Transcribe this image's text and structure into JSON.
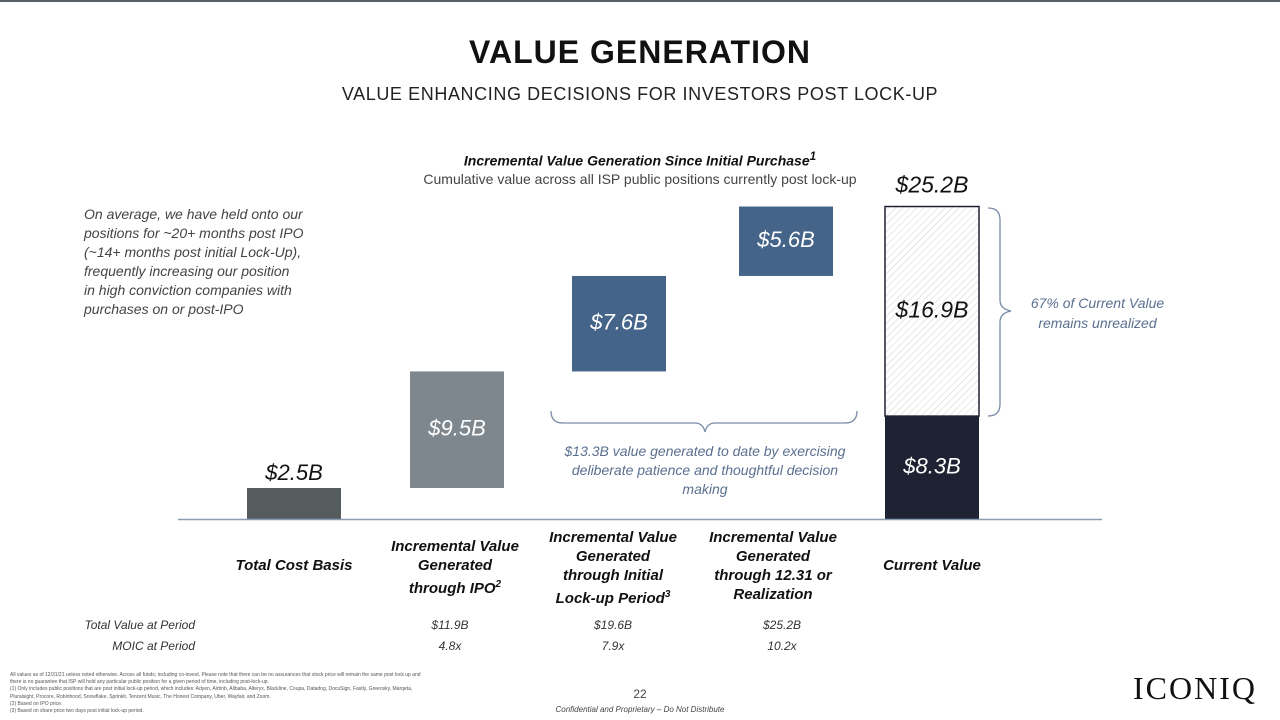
{
  "title": "VALUE GENERATION",
  "subtitle": "VALUE ENHANCING DECISIONS FOR INVESTORS POST LOCK-UP",
  "brand": "ICONIQ",
  "page_number": "22",
  "confidential": "Confidential and Proprietary – Do Not Distribute",
  "note": "On average, we have held onto our positions for ~20+ months post IPO (~14+ months post initial Lock-Up), frequently increasing our position in high conviction companies with purchases on or post-IPO",
  "brace_note": "$13.3B value generated to date by exercising deliberate patience and thoughtful decision making",
  "side_note": "67% of Current Value remains unrealized",
  "footnotes": [
    "All values as of 12/31/21 unless noted otherwise. Across all funds; including co-invest. Please note that there can be no assurances that stock price will remain the same post lock up and",
    "there is no guarantee that ISP will hold any particular public position for a given period of time, including post-lock-up.",
    "(1)   Only includes public positions that are post initial lock-up period, which includes: Adyen, Airbnb, Alibaba, Alteryx, Blackline, Coupa, Datadog, DocuSign, Fastly, Greensky, Marqeta,",
    "        Pluralsight, Procore, Robinhood, Snowflake, Sprinklr, Tencent Music, The Honest Company, Uber, Wayfair, and Zoom.",
    "(2)   Based on IPO price.",
    "(3)   Based on share price two days post initial lock-up period."
  ],
  "table": {
    "row1_label": "Total Value at Period",
    "row2_label": "MOIC at Period",
    "total_value": [
      "",
      "$11.9B",
      "$19.6B",
      "$25.2B"
    ],
    "moic": [
      "",
      "4.8x",
      "7.9x",
      "10.2x"
    ]
  },
  "chart_data": {
    "type": "waterfall",
    "title": "Incremental Value Generation Since Initial Purchase",
    "title_footnote": "1",
    "subtitle": "Cumulative value across all ISP public positions currently post lock-up",
    "unit": "$B",
    "categories": [
      {
        "label": "Total Cost Basis",
        "sup": ""
      },
      {
        "label": "Incremental Value Generated through IPO",
        "sup": "2"
      },
      {
        "label": "Incremental Value Generated through Initial Lock-up Period",
        "sup": "3"
      },
      {
        "label": "Incremental Value Generated through 12.31 or Realization",
        "sup": ""
      },
      {
        "label": "Current Value",
        "sup": ""
      }
    ],
    "bars": [
      {
        "category": "Total Cost Basis",
        "start": 0,
        "end": 2.5,
        "label": "$2.5B",
        "color": "#555c5e"
      },
      {
        "category": "Incremental Value Generated through IPO",
        "start": 2.5,
        "end": 11.9,
        "label": "$9.5B",
        "color": "#7d878d"
      },
      {
        "category": "Incremental Value Generated through Initial Lock-up Period",
        "start": 11.9,
        "end": 19.6,
        "label": "$7.6B",
        "color": "#44648a"
      },
      {
        "category": "Incremental Value Generated through 12.31 or Realization",
        "start": 19.6,
        "end": 25.2,
        "label": "$5.6B",
        "color": "#44648a"
      }
    ],
    "total_bar": {
      "category": "Current Value",
      "total": 25.2,
      "total_label": "$25.2B",
      "realized": 8.3,
      "realized_label": "$8.3B",
      "unrealized": 16.9,
      "unrealized_label": "$16.9B",
      "realized_color": "#1e2232",
      "unrealized_color": "#ffffff"
    }
  }
}
